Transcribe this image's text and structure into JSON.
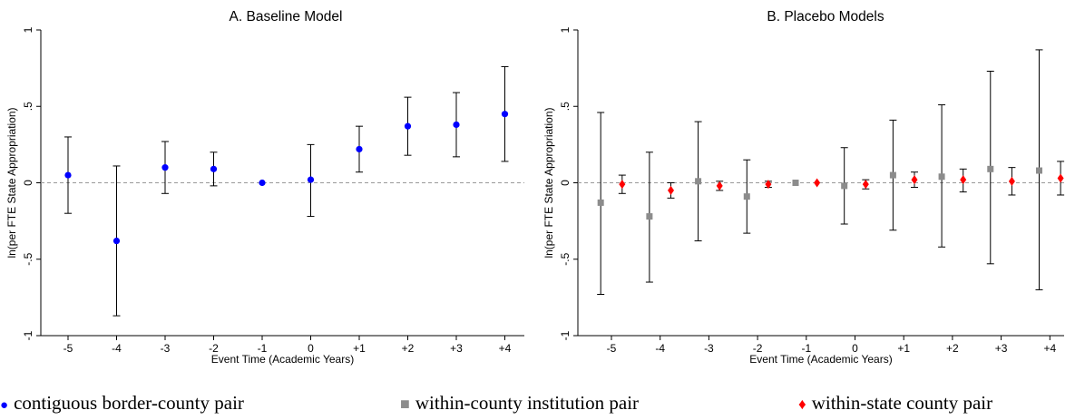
{
  "chart_data": [
    {
      "type": "scatter",
      "title": "A. Baseline Model",
      "xlabel": "Event Time (Academic Years)",
      "ylabel": "ln(per FTE State Appropriation)",
      "categories": [
        "-5",
        "-4",
        "-3",
        "-2",
        "-1",
        "0",
        "+1",
        "+2",
        "+3",
        "+4"
      ],
      "ylim": [
        -1,
        1
      ],
      "yticks": [
        "-1",
        "-.5",
        "0",
        ".5",
        "1"
      ],
      "reference_line": 0,
      "series": [
        {
          "legend_ref": "circle",
          "color": "#0000ff",
          "marker": "circle",
          "values": [
            0.05,
            -0.38,
            0.1,
            0.09,
            0.0,
            0.02,
            0.22,
            0.37,
            0.38,
            0.45
          ],
          "ci_low": [
            -0.2,
            -0.87,
            -0.07,
            -0.02,
            0.0,
            -0.22,
            0.07,
            0.18,
            0.17,
            0.14
          ],
          "ci_high": [
            0.3,
            0.11,
            0.27,
            0.2,
            0.0,
            0.25,
            0.37,
            0.56,
            0.59,
            0.76
          ]
        }
      ]
    },
    {
      "type": "scatter",
      "title": "B. Placebo Models",
      "xlabel": "Event Time (Academic Years)",
      "ylabel": "ln(per FTE State Appropriation)",
      "categories": [
        "-5",
        "-4",
        "-3",
        "-2",
        "-1",
        "0",
        "+1",
        "+2",
        "+3",
        "+4"
      ],
      "ylim": [
        -1,
        1
      ],
      "yticks": [
        "-1",
        "-.5",
        "0",
        ".5",
        "1"
      ],
      "reference_line": 0,
      "series": [
        {
          "legend_ref": "square",
          "color": "#8c8c8c",
          "marker": "square",
          "offset": -0.22,
          "values": [
            -0.13,
            -0.22,
            0.01,
            -0.09,
            0.0,
            -0.02,
            0.05,
            0.04,
            0.09,
            0.08
          ],
          "ci_low": [
            -0.73,
            -0.65,
            -0.38,
            -0.33,
            0.0,
            -0.27,
            -0.31,
            -0.42,
            -0.53,
            -0.7
          ],
          "ci_high": [
            0.46,
            0.2,
            0.4,
            0.15,
            0.0,
            0.23,
            0.41,
            0.51,
            0.73,
            0.87
          ]
        },
        {
          "legend_ref": "diamond",
          "color": "#ff0000",
          "marker": "diamond",
          "offset": 0.22,
          "values": [
            -0.01,
            -0.05,
            -0.02,
            -0.01,
            0.0,
            -0.01,
            0.02,
            0.02,
            0.01,
            0.03
          ],
          "ci_low": [
            -0.07,
            -0.1,
            -0.05,
            -0.03,
            0.0,
            -0.04,
            -0.03,
            -0.06,
            -0.08,
            -0.08
          ],
          "ci_high": [
            0.05,
            0.0,
            0.01,
            0.01,
            0.0,
            0.02,
            0.07,
            0.09,
            0.1,
            0.14
          ]
        }
      ]
    }
  ],
  "legend": {
    "circle_label": "contiguous border-county pair",
    "square_label": "within-county institution pair",
    "diamond_label": "within-state county pair",
    "circle_symbol": "●",
    "square_symbol": "■",
    "diamond_symbol": "♦"
  }
}
